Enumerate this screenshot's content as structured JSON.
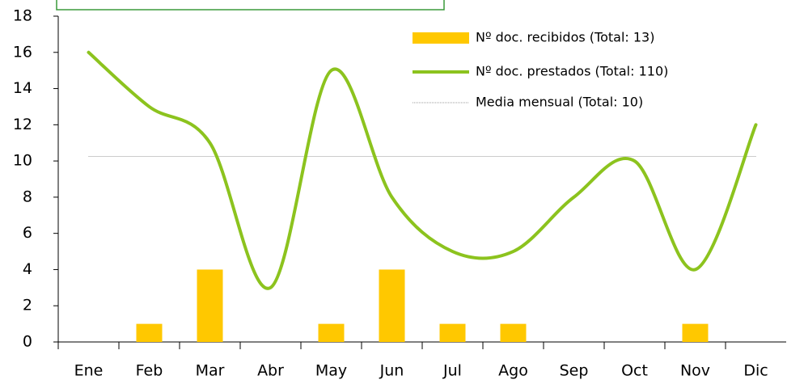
{
  "chart_data": {
    "type": "bar",
    "categories": [
      "Ene",
      "Feb",
      "Mar",
      "Abr",
      "May",
      "Jun",
      "Jul",
      "Ago",
      "Sep",
      "Oct",
      "Nov",
      "Dic"
    ],
    "series": [
      {
        "name": "Nº doc. recibidos (Total: 13)",
        "type": "bar",
        "color": "#ffc800",
        "values": [
          0,
          1,
          4,
          0,
          1,
          4,
          1,
          1,
          0,
          0,
          1,
          0
        ]
      },
      {
        "name": "Nº doc. prestados (Total: 110)",
        "type": "line",
        "color": "#8cc31e",
        "values": [
          16,
          13,
          11,
          3,
          15,
          8,
          5,
          5,
          8,
          10,
          4,
          12
        ]
      }
    ],
    "reference_line": {
      "name": "Media mensual (Total: 10)",
      "value": 10.25,
      "color": "#999999"
    },
    "ylim": [
      0,
      18
    ],
    "yticks": [
      0,
      2,
      4,
      6,
      8,
      10,
      12,
      14,
      16,
      18
    ]
  }
}
